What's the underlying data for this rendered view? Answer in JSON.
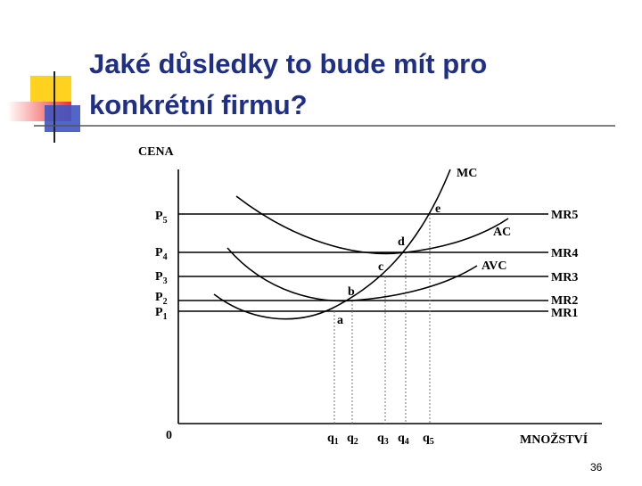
{
  "title": {
    "line1": "Jaké důsledky to bude mít pro",
    "line2": "konkrétní firmu?"
  },
  "diagram": {
    "y_axis_label": "CENA",
    "x_axis_label": "MNOŽSTVÍ",
    "origin": "0",
    "prices": [
      {
        "main": "P",
        "sub": "5"
      },
      {
        "main": "P",
        "sub": "4"
      },
      {
        "main": "P",
        "sub": "3"
      },
      {
        "main": "P",
        "sub": "2"
      },
      {
        "main": "P",
        "sub": "1"
      }
    ],
    "revenue_lines": [
      {
        "main": "MR",
        "sub": "5"
      },
      {
        "main": "MR",
        "sub": "4"
      },
      {
        "main": "MR",
        "sub": "3"
      },
      {
        "main": "MR",
        "sub": "2"
      },
      {
        "main": "MR",
        "sub": "1"
      }
    ],
    "quantities": [
      {
        "main": "q",
        "sub": "1"
      },
      {
        "main": "q",
        "sub": "2"
      },
      {
        "main": "q",
        "sub": "3"
      },
      {
        "main": "q",
        "sub": "4"
      },
      {
        "main": "q",
        "sub": "5"
      }
    ],
    "curves": [
      "MC",
      "AC",
      "AVC"
    ],
    "points": [
      "e",
      "d",
      "c",
      "b",
      "a"
    ]
  },
  "slide_number": "36"
}
